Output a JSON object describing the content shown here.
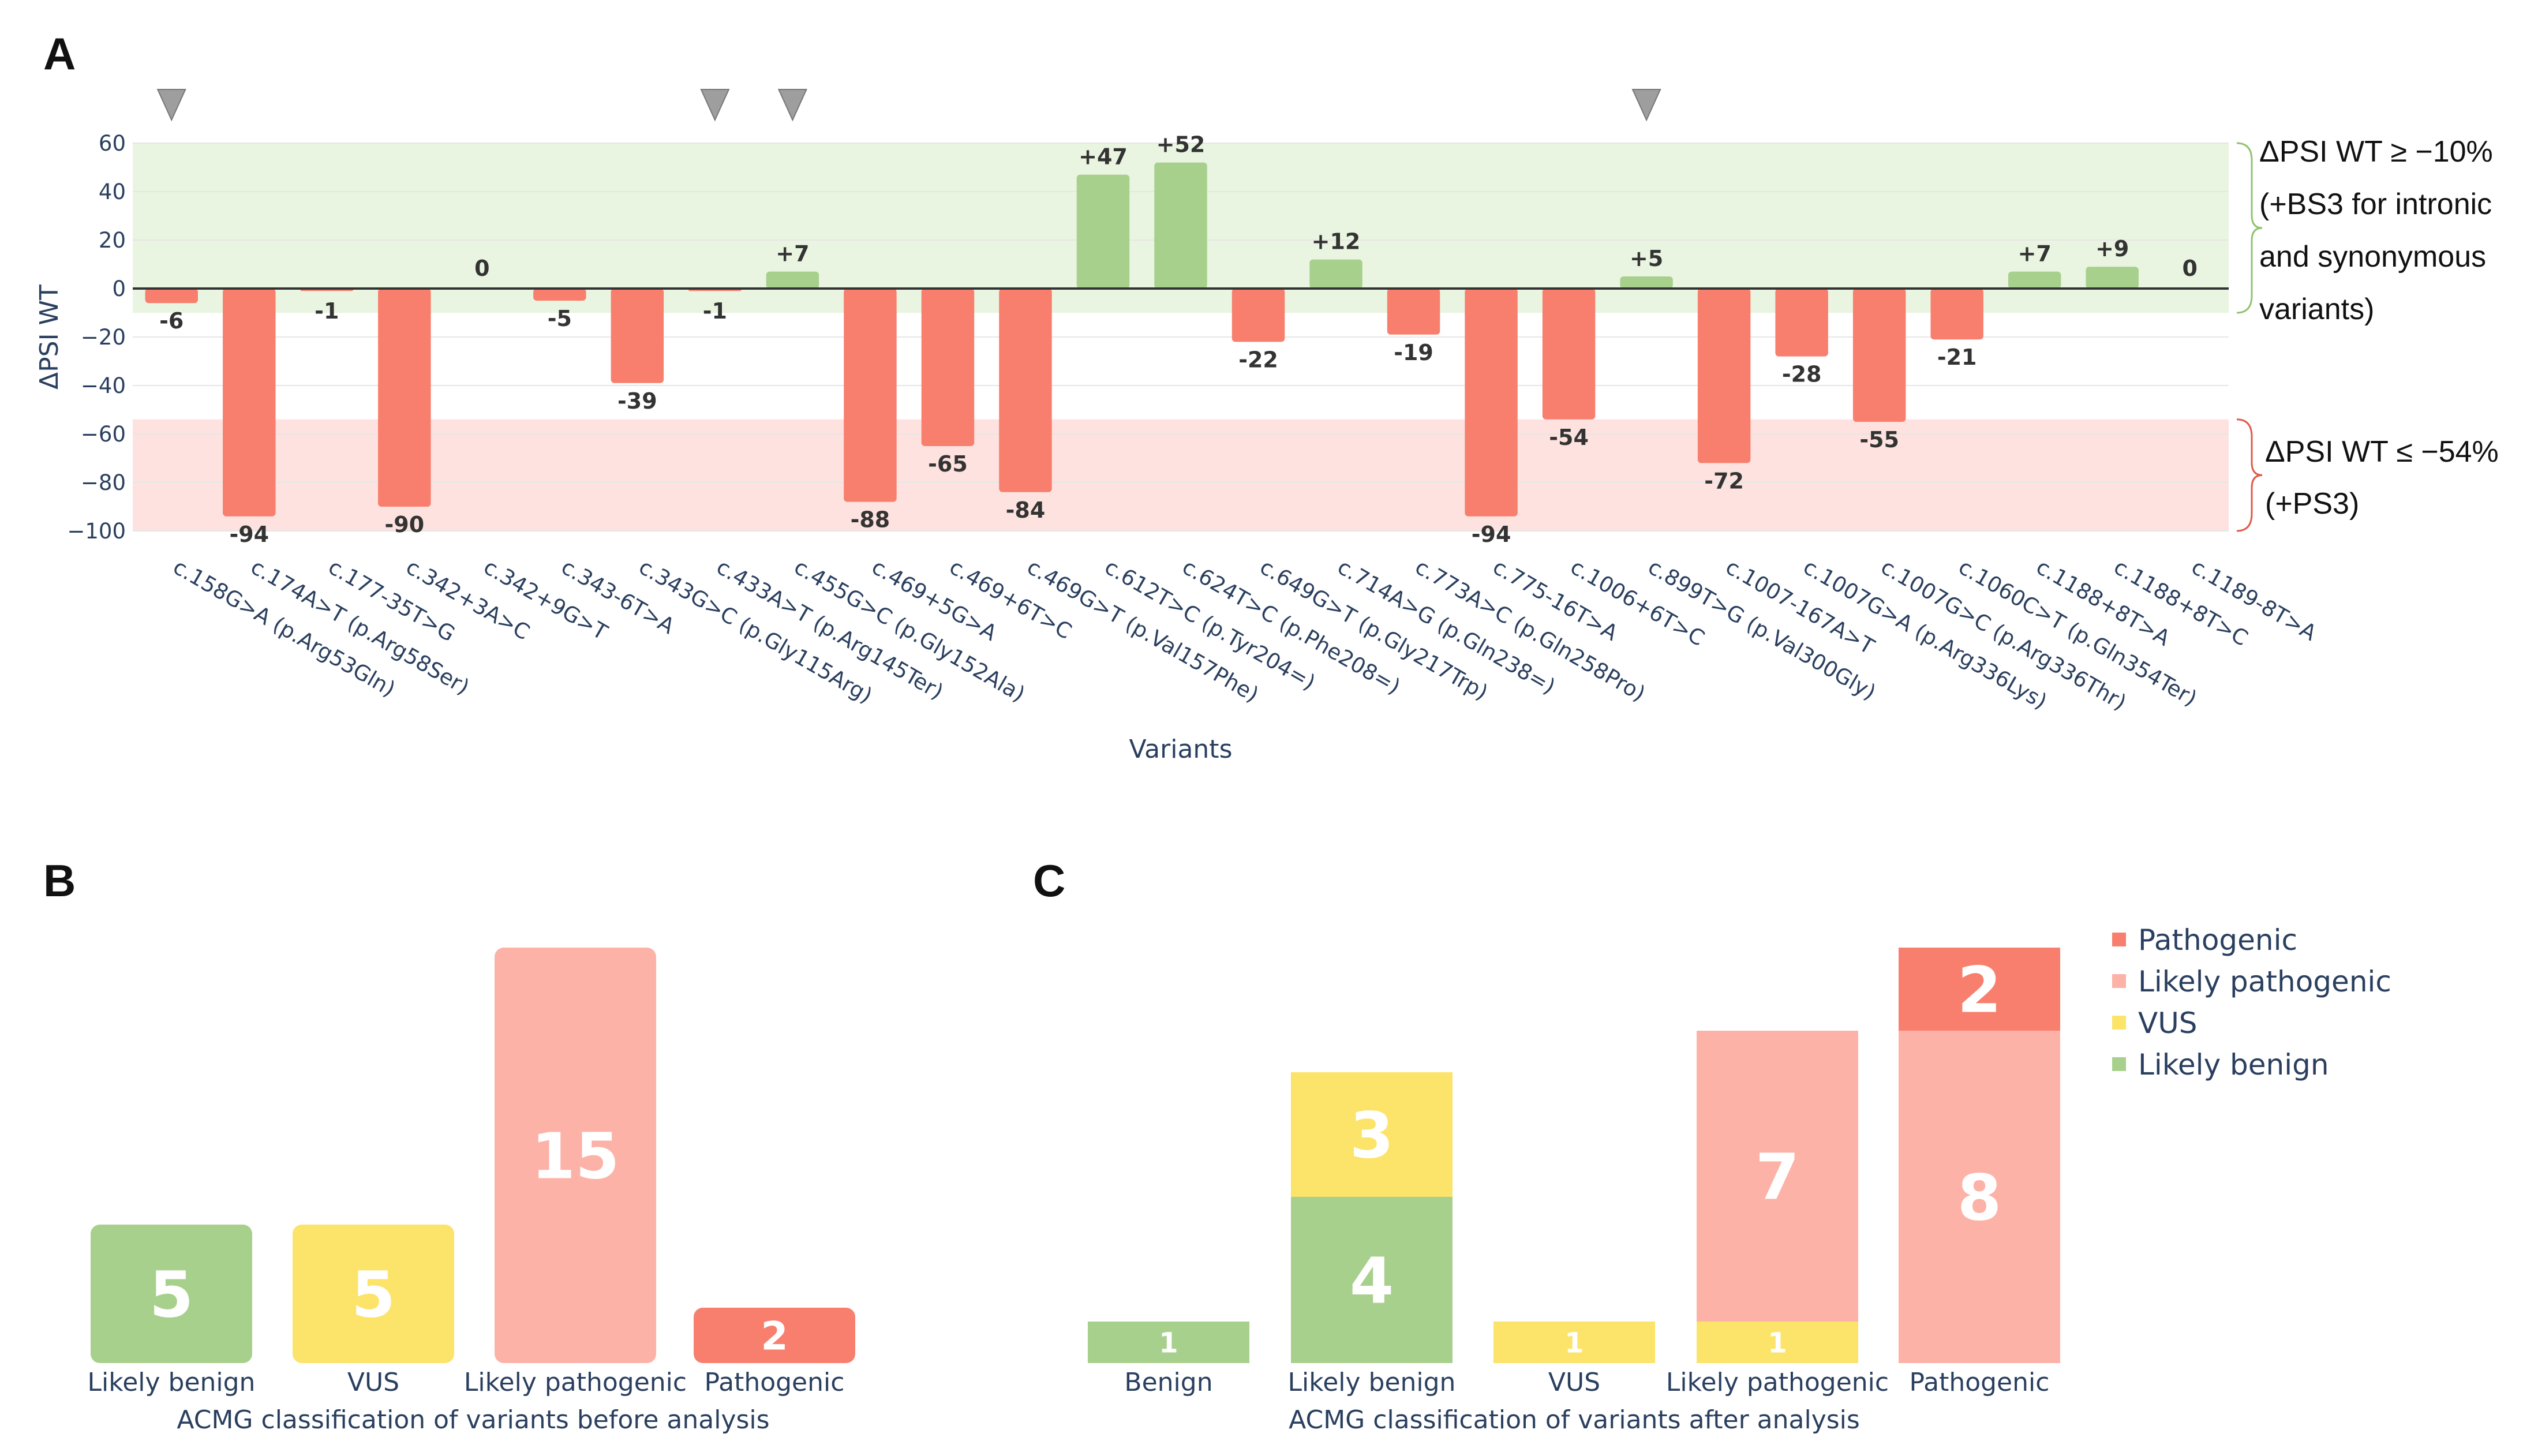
{
  "panels": {
    "a": "A",
    "b": "B",
    "c": "C"
  },
  "colors": {
    "negative": "#f87f6e",
    "positive": "#a8d08d",
    "benign_band": "#e9f5e0",
    "pathogenic_band": "#fde2df",
    "likely_benign": "#a8d08d",
    "vus": "#fce36a",
    "likely_pathogenic": "#fdb2a8",
    "pathogenic": "#f87f6e",
    "marker": "#9e9e9e"
  },
  "chart_data": [
    {
      "type": "bar",
      "id": "A",
      "ylabel": "ΔPSI WT",
      "xlabel": "Variants",
      "ylim": [
        -100,
        60
      ],
      "yticks": [
        60,
        40,
        20,
        0,
        -20,
        -40,
        -60,
        -80,
        -100
      ],
      "ytick_labels": [
        "60",
        "40",
        "20",
        "0",
        "−20",
        "−40",
        "−60",
        "−80",
        "−100"
      ],
      "categories": [
        "c.158G>A (p.Arg53Gln)",
        "c.174A>T (p.Arg58Ser)",
        "c.177-35T>G",
        "c.342+3A>C",
        "c.342+9G>T",
        "c.343-6T>A",
        "c.343G>C (p.Gly115Arg)",
        "c.433A>T (p.Arg145Ter)",
        "c.455G>C (p.Gly152Ala)",
        "c.469+5G>A",
        "c.469+6T>C",
        "c.469G>T (p.Val157Phe)",
        "c.612T>C (p.Tyr204=)",
        "c.624T>C (p.Phe208=)",
        "c.649G>T (p.Gly217Trp)",
        "c.714A>G (p.Gln238=)",
        "c.773A>C (p.Gln258Pro)",
        "c.775-16T>A",
        "c.1006+6T>C",
        "c.899T>G (p.Val300Gly)",
        "c.1007-167A>T",
        "c.1007G>A (p.Arg336Lys)",
        "c.1007G>C (p.Arg336Thr)",
        "c.1060C>T (p.Gln354Ter)",
        "c.1188+8T>A",
        "c.1188+8T>C",
        "c.1189-8T>A"
      ],
      "values": [
        -6,
        -94,
        -1,
        -90,
        0,
        -5,
        -39,
        -1,
        7,
        -88,
        -65,
        -84,
        47,
        52,
        -22,
        12,
        -19,
        -94,
        -54,
        5,
        -72,
        -28,
        -55,
        -21,
        7,
        9,
        0
      ],
      "value_labels": [
        "-6",
        "-94",
        "-1",
        "-90",
        "0",
        "-5",
        "-39",
        "-1",
        "+7",
        "-88",
        "-65",
        "-84",
        "+47",
        "+52",
        "-22",
        "+12",
        "-19",
        "-94",
        "-54",
        "+5",
        "-72",
        "-28",
        "-55",
        "-21",
        "+7",
        "+9",
        "0"
      ],
      "marked_indices": [
        0,
        7,
        8,
        19
      ],
      "bands": [
        {
          "from": -10,
          "to": 60,
          "label_lines": [
            "ΔPSI WT ≥ −10%",
            "(+BS3 for intronic",
            "and synonymous",
            "variants)"
          ]
        },
        {
          "from": -100,
          "to": -54,
          "label_lines": [
            "ΔPSI WT ≤ −54%",
            "(+PS3)"
          ]
        }
      ]
    },
    {
      "type": "bar",
      "id": "B",
      "title": "",
      "xlabel": "ACMG classification of variants before analysis",
      "categories": [
        "Likely benign",
        "VUS",
        "Likely pathogenic",
        "Pathogenic"
      ],
      "values": [
        5,
        5,
        15,
        2
      ],
      "labels": [
        "5",
        "5",
        "15",
        "2"
      ],
      "class_keys": [
        "likely_benign",
        "vus",
        "likely_pathogenic",
        "pathogenic"
      ],
      "ylim": [
        0,
        15
      ]
    },
    {
      "type": "bar",
      "id": "C",
      "stacked": true,
      "xlabel": "ACMG classification of variants after analysis",
      "categories": [
        "Benign",
        "Likely benign",
        "VUS",
        "Likely pathogenic",
        "Pathogenic"
      ],
      "ylim": [
        0,
        10
      ],
      "series": [
        {
          "name": "Likely benign",
          "key": "likely_benign",
          "values": [
            1,
            4,
            0,
            0,
            0
          ]
        },
        {
          "name": "VUS",
          "key": "vus",
          "values": [
            0,
            3,
            1,
            1,
            0
          ]
        },
        {
          "name": "Likely pathogenic",
          "key": "likely_pathogenic",
          "values": [
            0,
            0,
            0,
            7,
            8
          ]
        },
        {
          "name": "Pathogenic",
          "key": "pathogenic",
          "values": [
            0,
            0,
            0,
            0,
            2
          ]
        }
      ],
      "legend": [
        "Pathogenic",
        "Likely pathogenic",
        "VUS",
        "Likely benign"
      ],
      "legend_keys": [
        "pathogenic",
        "likely_pathogenic",
        "vus",
        "likely_benign"
      ],
      "legend_position": "top-right"
    }
  ]
}
